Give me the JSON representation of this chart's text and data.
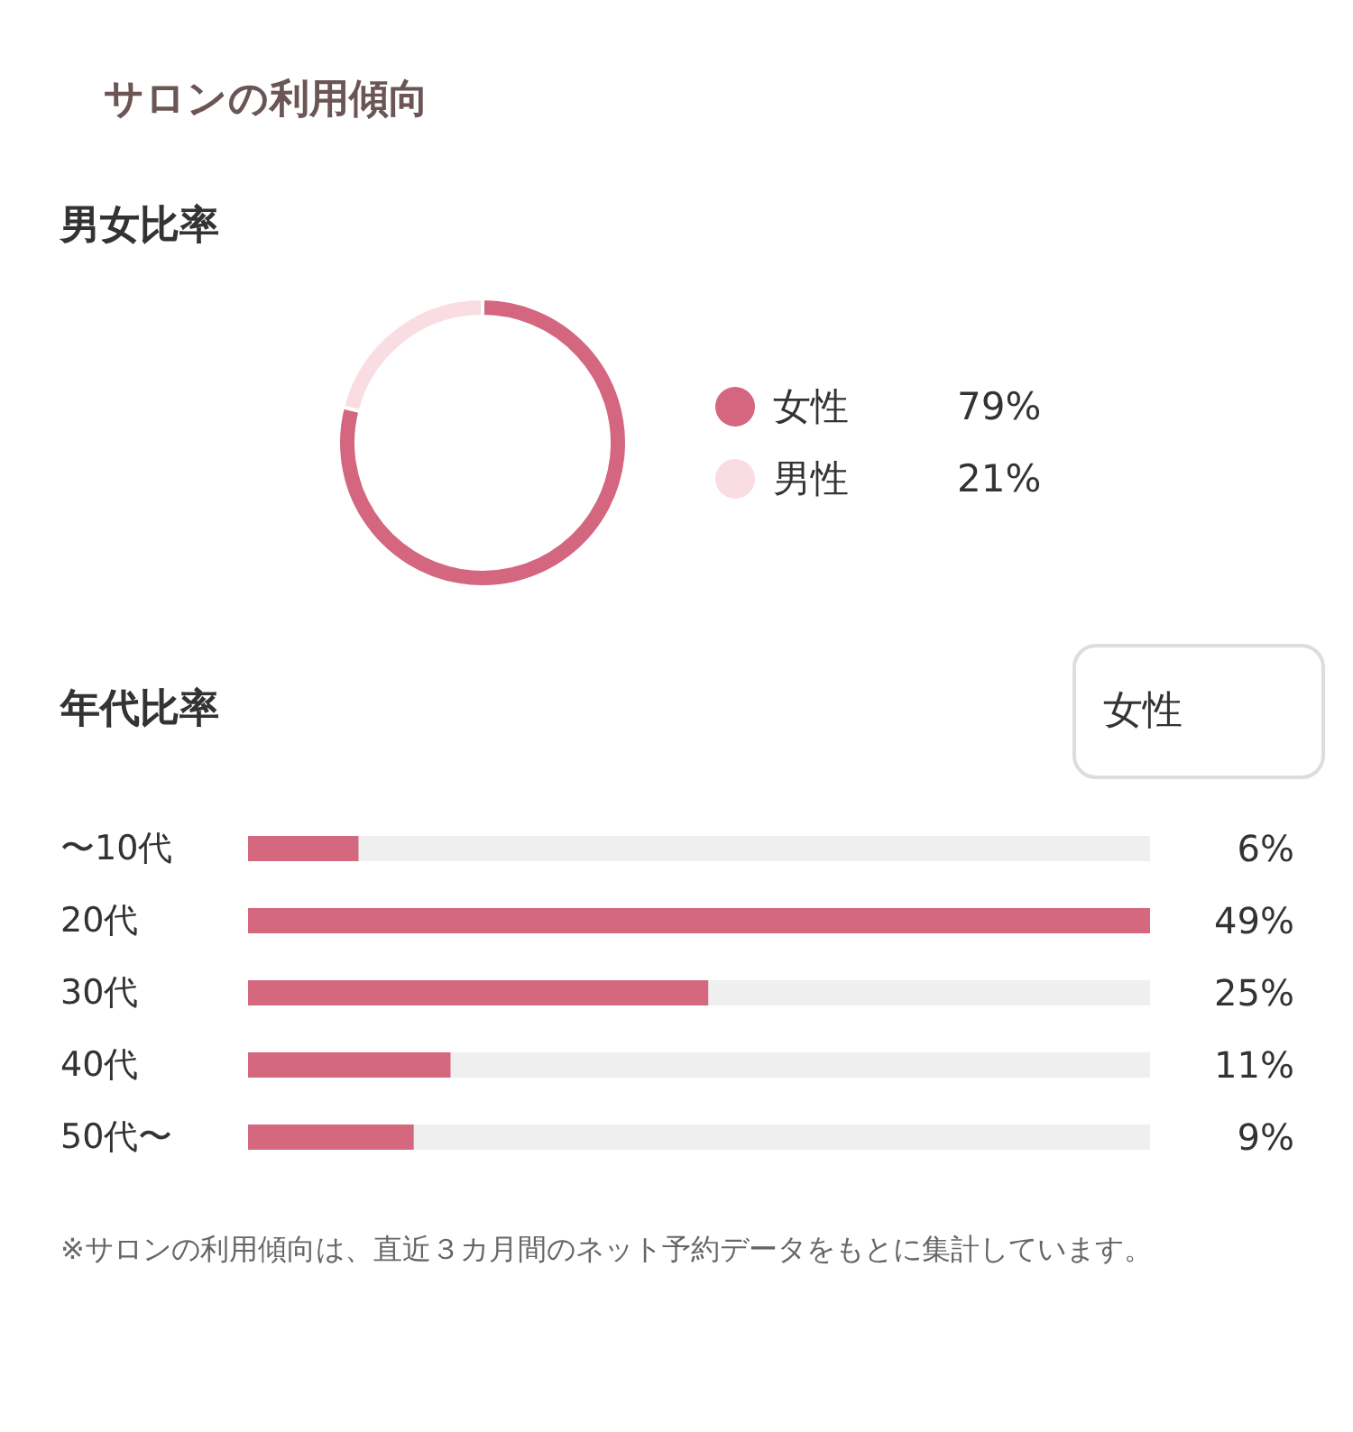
{
  "chart_data": [
    {
      "type": "donut",
      "title": "サロンの利用傾向",
      "subtitle": "男女比率",
      "categories": [
        "女性",
        "男性"
      ],
      "values": [
        79,
        21
      ],
      "colors": [
        "#d4677f",
        "#fadce3"
      ],
      "value_labels": [
        "79%",
        "21%"
      ],
      "legend": "right"
    },
    {
      "type": "bar",
      "orientation": "horizontal",
      "title": "年代比率",
      "categories": [
        "〜10代",
        "20代",
        "30代",
        "40代",
        "50代〜"
      ],
      "values": [
        6,
        49,
        25,
        11,
        9
      ],
      "color": "#d4687f",
      "value_labels": [
        "6%",
        "49%",
        "25%",
        "11%",
        "9%"
      ],
      "tick_labels": "y",
      "annotations": [
        "女性",
        "※サロンの利用傾向は、直近３カ月間のネット予約データをもとに集計しています。"
      ]
    }
  ]
}
